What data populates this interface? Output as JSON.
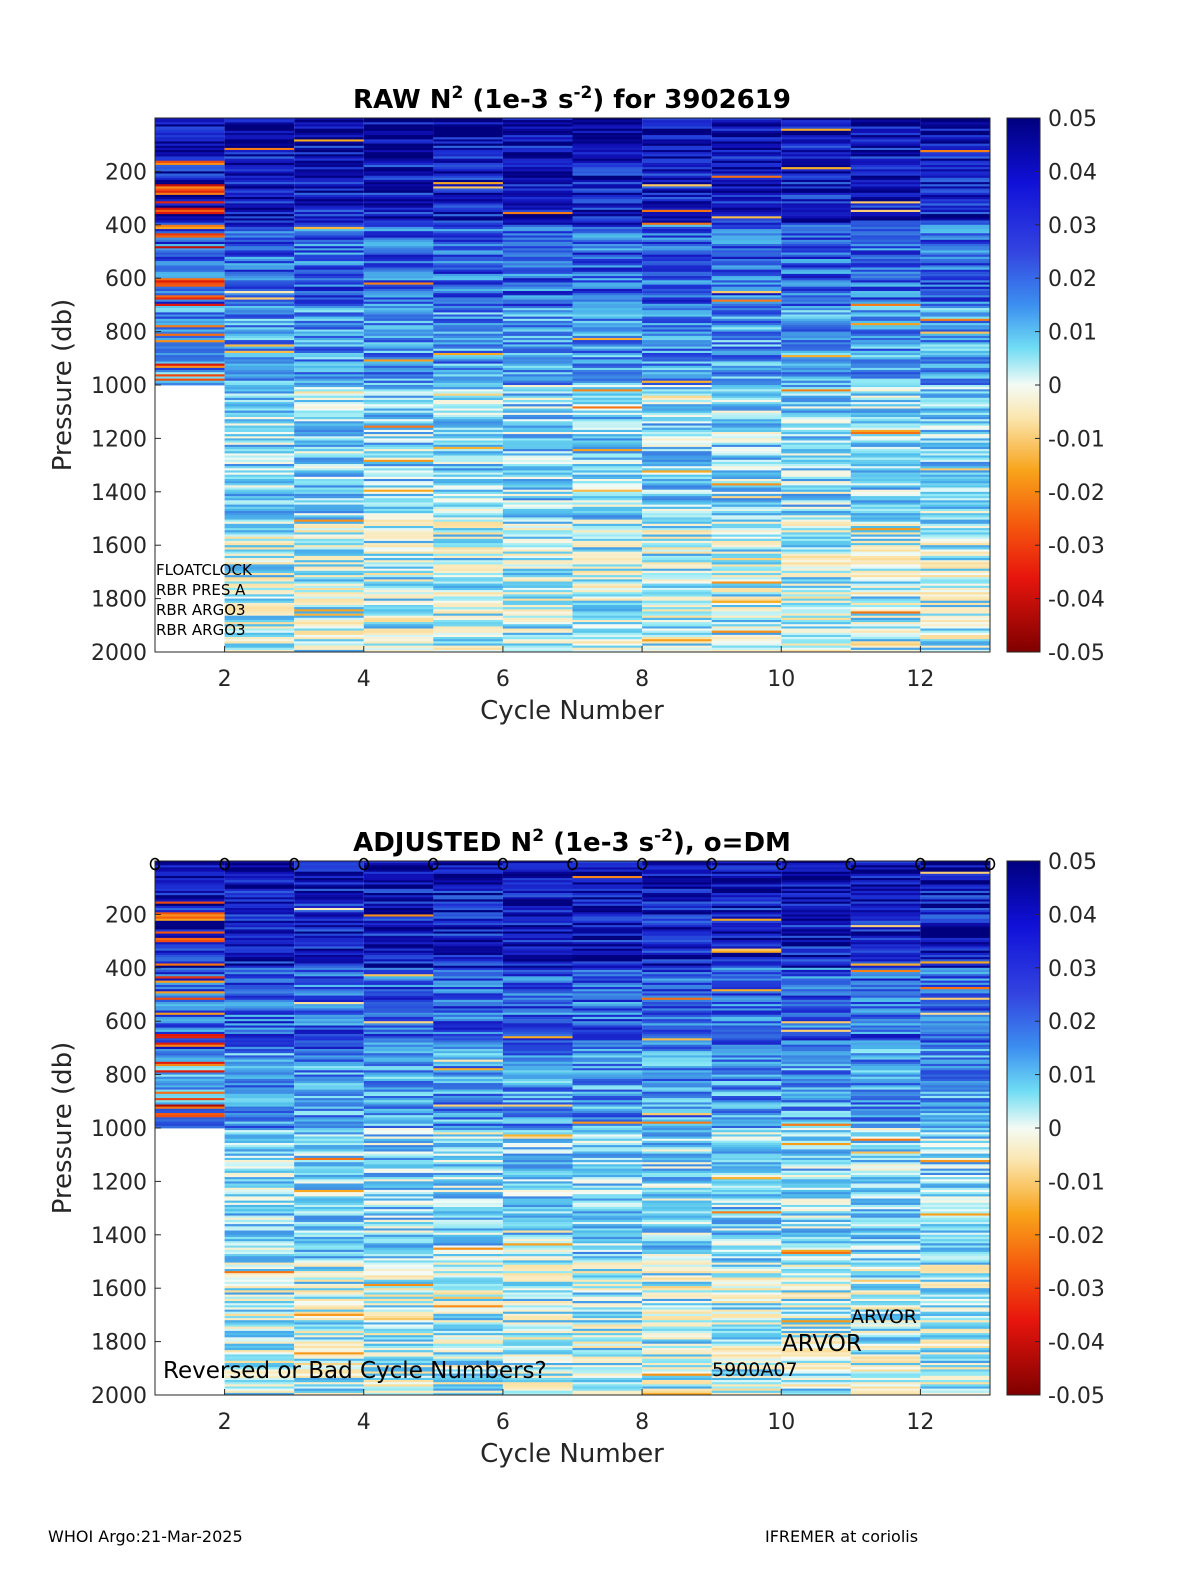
{
  "footer": {
    "left": "WHOI Argo:21-Mar-2025",
    "right": "IFREMER at coriolis"
  },
  "chart_data": [
    {
      "type": "heatmap",
      "title_main": "RAW N",
      "title_sup1": "2",
      "title_mid": " (1e-3 s",
      "title_sup2": "-2",
      "title_end": ") for 3902619",
      "xlabel": "Cycle Number",
      "ylabel": "Pressure (db)",
      "xlim": [
        1,
        13
      ],
      "ylim": [
        0,
        2000
      ],
      "y_reversed": true,
      "xticks": [
        2,
        4,
        6,
        8,
        10,
        12
      ],
      "yticks": [
        200,
        400,
        600,
        800,
        1000,
        1200,
        1400,
        1600,
        1800,
        2000
      ],
      "colorbar": {
        "min": -0.05,
        "max": 0.05,
        "ticks": [
          "0.05",
          "0.04",
          "0.03",
          "0.02",
          "0.01",
          "0",
          "-0.01",
          "-0.02",
          "-0.03",
          "-0.04",
          "-0.05"
        ]
      },
      "cycles": [
        1,
        2,
        3,
        4,
        5,
        6,
        7,
        8,
        9,
        10,
        11,
        12
      ],
      "max_pressure": [
        1000,
        2000,
        2000,
        2000,
        2000,
        2000,
        2000,
        2000,
        2000,
        2000,
        2000,
        2000
      ],
      "annotations": [
        "FLOATCLOCK",
        "RBR PRES A",
        "RBR ARGO3",
        "RBR ARGO3"
      ]
    },
    {
      "type": "heatmap",
      "title_main": "ADJUSTED N",
      "title_sup1": "2",
      "title_mid": " (1e-3 s",
      "title_sup2": "-2",
      "title_end": "), o=DM",
      "xlabel": "Cycle Number",
      "ylabel": "Pressure (db)",
      "xlim": [
        1,
        13
      ],
      "ylim": [
        0,
        2000
      ],
      "y_reversed": true,
      "xticks": [
        2,
        4,
        6,
        8,
        10,
        12
      ],
      "yticks": [
        200,
        400,
        600,
        800,
        1000,
        1200,
        1400,
        1600,
        1800,
        2000
      ],
      "colorbar": {
        "min": -0.05,
        "max": 0.05,
        "ticks": [
          "0.05",
          "0.04",
          "0.03",
          "0.02",
          "0.01",
          "0",
          "-0.01",
          "-0.02",
          "-0.03",
          "-0.04",
          "-0.05"
        ]
      },
      "cycles": [
        1,
        2,
        3,
        4,
        5,
        6,
        7,
        8,
        9,
        10,
        11,
        12
      ],
      "max_pressure": [
        1000,
        2000,
        2000,
        2000,
        2000,
        2000,
        2000,
        2000,
        2000,
        2000,
        2000,
        2000
      ],
      "dm_markers": [
        1,
        2,
        3,
        4,
        5,
        6,
        7,
        8,
        9,
        10,
        11,
        12,
        13
      ],
      "annotations": {
        "warning": "Reversed or Bad Cycle Numbers?",
        "firmware": "5900A07",
        "platform_a": "ARVOR",
        "platform_b": "ARVOR"
      }
    }
  ]
}
